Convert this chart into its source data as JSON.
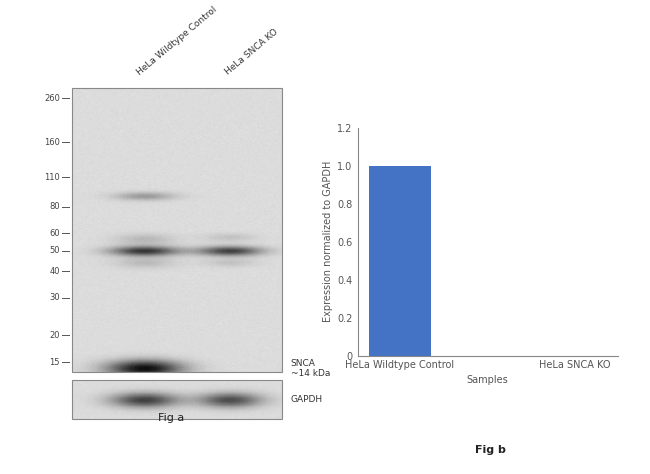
{
  "fig_width": 6.5,
  "fig_height": 4.74,
  "dpi": 100,
  "background_color": "#ffffff",
  "wb_panel": {
    "gel_bg_gray": 0.86,
    "gel_border": "#aaaaaa",
    "mw_markers": [
      260,
      160,
      110,
      80,
      60,
      50,
      40,
      30,
      20,
      15
    ],
    "lane_labels": [
      "HeLa Wildtype Control",
      "HeLa SNCA KO"
    ],
    "snca_label": "SNCA\n~14 kDa",
    "gapdh_label": "GAPDH",
    "fig_a_label": "Fig a"
  },
  "bar_panel": {
    "categories": [
      "HeLa Wildtype Control",
      "HeLa SNCA KO"
    ],
    "values": [
      1.0,
      0.0
    ],
    "bar_color": "#4472c4",
    "bar_width": 0.35,
    "ylim": [
      0,
      1.2
    ],
    "yticks": [
      0,
      0.2,
      0.4,
      0.6,
      0.8,
      1.0,
      1.2
    ],
    "ylabel": "Expression normalized to GAPDH",
    "xlabel": "Samples",
    "fig_b_label": "Fig b"
  }
}
